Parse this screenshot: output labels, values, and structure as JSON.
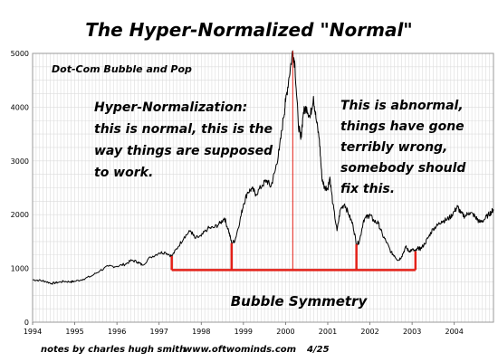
{
  "chart_data": {
    "type": "line",
    "title": "The Hyper-Normalized \"Normal\"",
    "xlabel": "",
    "ylabel": "",
    "xlim": [
      1994,
      2004.93
    ],
    "ylim": [
      0,
      5000
    ],
    "grid": true,
    "x_ticks": [
      "1994",
      "1995",
      "1996",
      "1997",
      "1998",
      "1999",
      "2000",
      "2001",
      "2002",
      "2003",
      "2004"
    ],
    "y_ticks": [
      "0",
      "1000",
      "2000",
      "3000",
      "4000",
      "5000"
    ],
    "series": [
      {
        "color": "#000000",
        "points": [
          [
            1994.0,
            790
          ],
          [
            1994.15,
            780
          ],
          [
            1994.3,
            760
          ],
          [
            1994.45,
            720
          ],
          [
            1994.6,
            740
          ],
          [
            1994.75,
            760
          ],
          [
            1994.9,
            750
          ],
          [
            1995.0,
            760
          ],
          [
            1995.2,
            800
          ],
          [
            1995.4,
            860
          ],
          [
            1995.6,
            960
          ],
          [
            1995.8,
            1040
          ],
          [
            1996.0,
            1040
          ],
          [
            1996.2,
            1080
          ],
          [
            1996.35,
            1150
          ],
          [
            1996.5,
            1120
          ],
          [
            1996.6,
            1060
          ],
          [
            1996.8,
            1210
          ],
          [
            1997.0,
            1290
          ],
          [
            1997.15,
            1300
          ],
          [
            1997.3,
            1230
          ],
          [
            1997.45,
            1400
          ],
          [
            1997.6,
            1590
          ],
          [
            1997.75,
            1700
          ],
          [
            1997.85,
            1560
          ],
          [
            1998.0,
            1600
          ],
          [
            1998.15,
            1740
          ],
          [
            1998.3,
            1760
          ],
          [
            1998.45,
            1840
          ],
          [
            1998.55,
            1940
          ],
          [
            1998.65,
            1700
          ],
          [
            1998.72,
            1470
          ],
          [
            1998.8,
            1520
          ],
          [
            1998.92,
            1900
          ],
          [
            1999.0,
            2190
          ],
          [
            1999.1,
            2420
          ],
          [
            1999.2,
            2480
          ],
          [
            1999.3,
            2380
          ],
          [
            1999.45,
            2550
          ],
          [
            1999.55,
            2640
          ],
          [
            1999.65,
            2520
          ],
          [
            1999.75,
            2810
          ],
          [
            1999.85,
            3200
          ],
          [
            1999.95,
            3800
          ],
          [
            2000.0,
            4100
          ],
          [
            2000.08,
            4550
          ],
          [
            2000.17,
            5048
          ],
          [
            2000.22,
            4800
          ],
          [
            2000.3,
            3700
          ],
          [
            2000.36,
            3400
          ],
          [
            2000.42,
            3900
          ],
          [
            2000.5,
            4000
          ],
          [
            2000.58,
            3800
          ],
          [
            2000.66,
            4200
          ],
          [
            2000.72,
            3800
          ],
          [
            2000.8,
            3400
          ],
          [
            2000.86,
            2700
          ],
          [
            2000.92,
            2500
          ],
          [
            2001.0,
            2500
          ],
          [
            2001.05,
            2700
          ],
          [
            2001.12,
            2200
          ],
          [
            2001.22,
            1700
          ],
          [
            2001.3,
            2100
          ],
          [
            2001.4,
            2200
          ],
          [
            2001.5,
            2000
          ],
          [
            2001.6,
            1800
          ],
          [
            2001.68,
            1450
          ],
          [
            2001.75,
            1500
          ],
          [
            2001.85,
            1900
          ],
          [
            2001.95,
            1970
          ],
          [
            2002.0,
            1990
          ],
          [
            2002.1,
            1880
          ],
          [
            2002.2,
            1840
          ],
          [
            2002.3,
            1620
          ],
          [
            2002.4,
            1480
          ],
          [
            2002.5,
            1300
          ],
          [
            2002.58,
            1240
          ],
          [
            2002.67,
            1150
          ],
          [
            2002.75,
            1220
          ],
          [
            2002.85,
            1400
          ],
          [
            2002.92,
            1320
          ],
          [
            2003.0,
            1350
          ],
          [
            2003.08,
            1320
          ],
          [
            2003.15,
            1380
          ],
          [
            2003.2,
            1360
          ],
          [
            2003.3,
            1460
          ],
          [
            2003.4,
            1600
          ],
          [
            2003.5,
            1740
          ],
          [
            2003.6,
            1800
          ],
          [
            2003.7,
            1880
          ],
          [
            2003.8,
            1900
          ],
          [
            2003.9,
            1950
          ],
          [
            2004.0,
            2060
          ],
          [
            2004.08,
            2150
          ],
          [
            2004.15,
            2030
          ],
          [
            2004.25,
            1970
          ],
          [
            2004.35,
            2040
          ],
          [
            2004.45,
            2000
          ],
          [
            2004.52,
            1940
          ],
          [
            2004.6,
            1860
          ],
          [
            2004.7,
            1900
          ],
          [
            2004.8,
            1990
          ],
          [
            2004.88,
            2050
          ],
          [
            2004.93,
            2100
          ]
        ]
      }
    ],
    "highlights": {
      "color": "#e32018",
      "vertical_lines": [
        {
          "x": 1997.3,
          "y_from": 1230,
          "y_to": 970
        },
        {
          "x": 1998.72,
          "y_from": 1470,
          "y_to": 970
        },
        {
          "x": 2000.17,
          "y_from": 5048,
          "y_to": 970
        },
        {
          "x": 2001.68,
          "y_from": 1450,
          "y_to": 970
        },
        {
          "x": 2003.08,
          "y_from": 1320,
          "y_to": 970
        }
      ],
      "baseline": {
        "y": 970,
        "x_from": 1997.3,
        "x_to": 2003.08
      }
    },
    "annotations": {
      "dotcom": "Dot-Com Bubble and Pop",
      "hyper_normal": [
        "Hyper-Normalization:",
        "this is normal, this is the",
        "way things are supposed",
        "to work."
      ],
      "abnormal": [
        "This is abnormal,",
        "things have gone",
        "terribly wrong,",
        "somebody should",
        "fix this."
      ],
      "symmetry": "Bubble Symmetry"
    },
    "footer": {
      "author": "notes by charles hugh smith",
      "site": "www.oftwominds.com",
      "date": "4/25"
    }
  }
}
